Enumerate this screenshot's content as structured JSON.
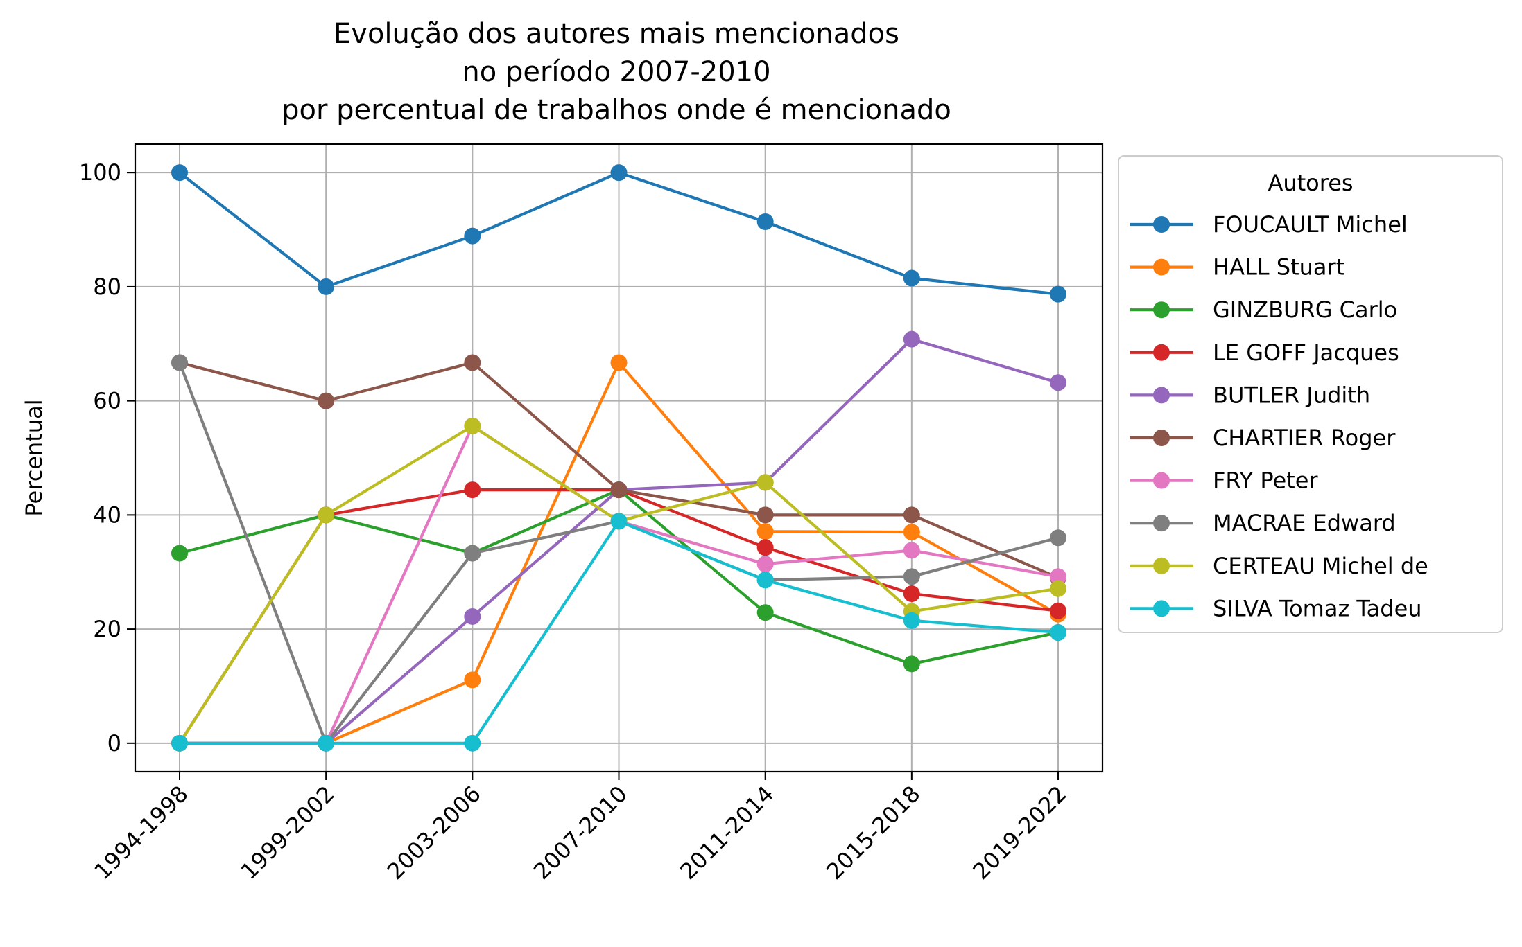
{
  "chart_data": {
    "type": "line",
    "title_lines": [
      "Evolução dos autores mais mencionados",
      "no período 2007-2010",
      "por percentual de trabalhos onde é mencionado"
    ],
    "xlabel": "",
    "ylabel": "Percentual",
    "categories": [
      "1994-1998",
      "1999-2002",
      "2003-2006",
      "2007-2010",
      "2011-2014",
      "2015-2018",
      "2019-2022"
    ],
    "yticks": [
      0,
      20,
      40,
      60,
      80,
      100
    ],
    "ylim": [
      -5,
      105
    ],
    "grid": true,
    "legend": {
      "title": "Autores",
      "placement": "outside right, top"
    },
    "series": [
      {
        "name": "FOUCAULT Michel",
        "color": "#1f77b4",
        "values": [
          100,
          80,
          88.9,
          100,
          91.4,
          81.5,
          78.7
        ]
      },
      {
        "name": "HALL Stuart",
        "color": "#ff7f0e",
        "values": [
          0,
          0,
          11.1,
          66.7,
          37.1,
          37.0,
          22.6
        ]
      },
      {
        "name": "GINZBURG Carlo",
        "color": "#2ca02c",
        "values": [
          33.3,
          40,
          33.3,
          44.4,
          22.9,
          13.9,
          19.4
        ]
      },
      {
        "name": "LE GOFF Jacques",
        "color": "#d62728",
        "values": [
          0,
          40,
          44.4,
          44.4,
          34.3,
          26.2,
          23.2
        ]
      },
      {
        "name": "BUTLER Judith",
        "color": "#9467bd",
        "values": [
          0,
          0,
          22.2,
          44.4,
          45.7,
          70.8,
          63.2
        ]
      },
      {
        "name": "CHARTIER Roger",
        "color": "#8c564b",
        "values": [
          66.7,
          60,
          66.7,
          44.4,
          40,
          40,
          29.0
        ]
      },
      {
        "name": "FRY Peter",
        "color": "#e377c2",
        "values": [
          0,
          0,
          55.6,
          38.9,
          31.4,
          33.8,
          29.2
        ]
      },
      {
        "name": "MACRAE Edward",
        "color": "#7f7f7f",
        "values": [
          66.7,
          0,
          33.3,
          38.9,
          28.6,
          29.2,
          36.0
        ]
      },
      {
        "name": "CERTEAU Michel de",
        "color": "#bcbd22",
        "values": [
          0,
          40,
          55.6,
          38.9,
          45.7,
          23.1,
          27.1
        ]
      },
      {
        "name": "SILVA Tomaz Tadeu",
        "color": "#17becf",
        "values": [
          0,
          0,
          0,
          38.9,
          28.6,
          21.5,
          19.4
        ]
      }
    ]
  }
}
